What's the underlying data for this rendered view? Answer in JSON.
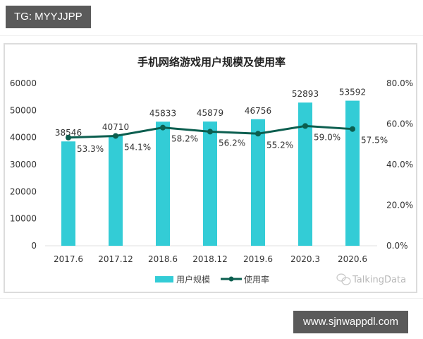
{
  "watermarks": {
    "top": "TG: MYYJJPP",
    "bottom": "www.sjnwappdl.com"
  },
  "colors": {
    "bar": "#33CCD6",
    "line": "#0B5E4F",
    "watermark_bg": "#5a5a5a"
  },
  "chart_data": {
    "type": "bar",
    "title": "手机网络游戏用户规模及使用率",
    "categories": [
      "2017.6",
      "2017.12",
      "2018.6",
      "2018.12",
      "2019.6",
      "2020.3",
      "2020.6"
    ],
    "series": [
      {
        "name": "用户规模",
        "type": "bar",
        "axis": "left",
        "values": [
          38546,
          40710,
          45833,
          45879,
          46756,
          52893,
          53592
        ]
      },
      {
        "name": "使用率",
        "type": "line",
        "axis": "right",
        "values": [
          53.3,
          54.1,
          58.2,
          56.2,
          55.2,
          59.0,
          57.5
        ],
        "labels": [
          "53.3%",
          "54.1%",
          "58.2%",
          "56.2%",
          "55.2%",
          "59.0%",
          "57.5%"
        ]
      }
    ],
    "left_axis": {
      "ylim": [
        0,
        60000
      ],
      "ticks": [
        "0",
        "10000",
        "20000",
        "30000",
        "40000",
        "50000",
        "60000"
      ]
    },
    "right_axis": {
      "ylim": [
        0,
        80
      ],
      "ticks": [
        "0.0%",
        "20.0%",
        "40.0%",
        "60.0%",
        "80.0%"
      ]
    },
    "xlabel": "",
    "ylabel": "",
    "grid": false,
    "legend": {
      "position": "bottom",
      "entries": [
        "用户规模",
        "使用率"
      ]
    },
    "source": "TalkingData"
  }
}
